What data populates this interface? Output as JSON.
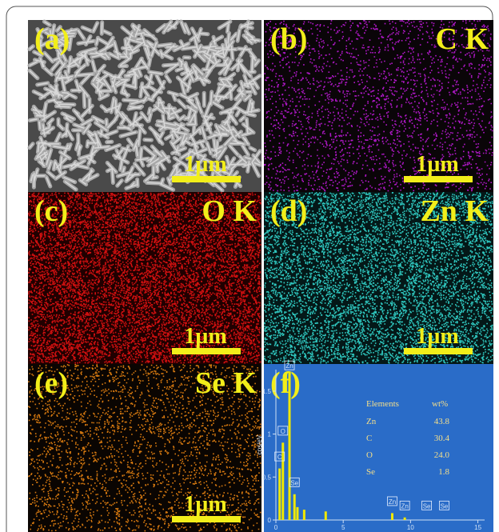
{
  "panels": [
    {
      "label": "(a)",
      "scale_bar": "1µm"
    },
    {
      "label": "(b)",
      "element": "C K",
      "scale_bar": "1µm"
    },
    {
      "label": "(c)",
      "element": "O K",
      "scale_bar": "1µm"
    },
    {
      "label": "(d)",
      "element": "Zn K",
      "scale_bar": "1µm"
    },
    {
      "label": "(e)",
      "element": "Se K",
      "scale_bar": "1µm"
    },
    {
      "label": "(f)"
    }
  ],
  "table": {
    "header": [
      "Elements",
      "wt%"
    ],
    "rows": [
      [
        "Zn",
        "43.8"
      ],
      [
        "C",
        "30.4"
      ],
      [
        "O",
        "24.0"
      ],
      [
        "Se",
        "1.8"
      ]
    ]
  },
  "chart_data": {
    "type": "bar",
    "y_label": "cps/eV",
    "xlim": [
      0,
      15.5
    ],
    "ylim": [
      0,
      1.75
    ],
    "xticks": [
      0,
      5,
      10,
      15
    ],
    "yticks": [
      0,
      0.5,
      1,
      1.5
    ],
    "x": [
      0.28,
      0.52,
      1.01,
      1.38,
      1.6,
      2.1,
      3.7,
      8.64,
      9.57
    ],
    "values": [
      0.6,
      0.9,
      1.72,
      0.3,
      0.15,
      0.12,
      0.1,
      0.08,
      0.03
    ],
    "color": "#f0e800",
    "peak_labels": [
      {
        "text": "C",
        "x": 0.28,
        "y": 0.66
      },
      {
        "text": "O",
        "x": 0.52,
        "y": 0.96
      },
      {
        "text": "Zn",
        "x": 1.01,
        "y": 1.72
      },
      {
        "text": "Se",
        "x": 1.38,
        "y": 0.36
      },
      {
        "text": "Zn",
        "x": 8.64,
        "y": 0.14
      },
      {
        "text": "Zn",
        "x": 9.57,
        "y": 0.09
      },
      {
        "text": "Se",
        "x": 11.2,
        "y": 0.09
      },
      {
        "text": "Se",
        "x": 12.5,
        "y": 0.09
      }
    ]
  }
}
